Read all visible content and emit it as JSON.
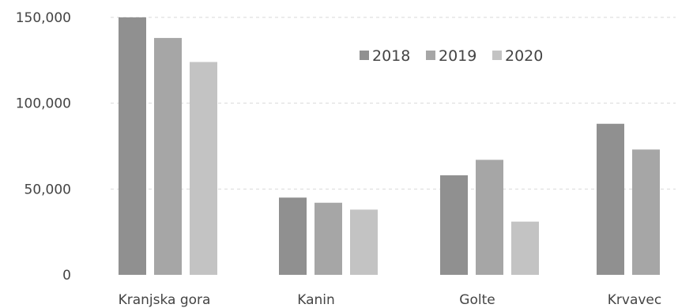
{
  "chart_data": {
    "type": "bar",
    "categories": [
      "Kranjska gora",
      "Kanin",
      "Golte",
      "Krvavec"
    ],
    "series": [
      {
        "name": "2018",
        "values": [
          150000,
          45000,
          58000,
          88000
        ],
        "color": "#909090"
      },
      {
        "name": "2019",
        "values": [
          138000,
          42000,
          67000,
          73000
        ],
        "color": "#a6a6a6"
      },
      {
        "name": "2020",
        "values": [
          124000,
          38000,
          31000,
          null
        ],
        "color": "#c3c3c3"
      }
    ],
    "y_ticks": [
      {
        "value": 0,
        "label": "0"
      },
      {
        "value": 50000,
        "label": "50,000"
      },
      {
        "value": 100000,
        "label": "100,000"
      },
      {
        "value": 150000,
        "label": "150,000"
      }
    ],
    "ylim": [
      0,
      150000
    ],
    "grid": true,
    "legend_position": "top-right"
  }
}
